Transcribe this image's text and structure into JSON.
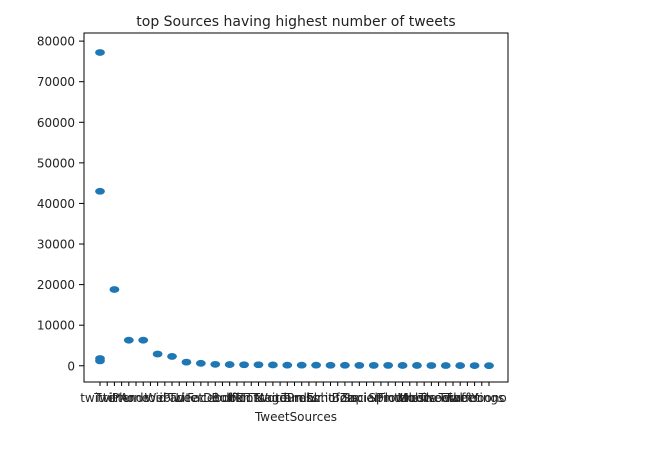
{
  "chart_data": {
    "type": "scatter",
    "title": "top Sources having highest number of tweets",
    "xlabel": "TweetSources",
    "ylabel": "",
    "ylim": [
      -4000,
      82000
    ],
    "yticks": [
      0,
      10000,
      20000,
      30000,
      40000,
      50000,
      60000,
      70000,
      80000
    ],
    "grid": false,
    "categories": [
      "twitter",
      "Twitter",
      "iPhone",
      "Android",
      "Web",
      "iPad",
      "Lite",
      "TweetDeck",
      "Facebook",
      "Buffer",
      "IFTTT",
      "Hootsuite",
      "Instagram",
      "WordPress",
      "Tumblr",
      "dlvr.it",
      "Echofon",
      "Bots",
      "Zapier",
      "SocialFlow",
      "Sprout",
      "Pinterest",
      "Mobile",
      "Ubersocial",
      "Tweetbot",
      "Twuffer",
      "Tweetings",
      "Yoono"
    ],
    "tick_labels": [
      "twitter",
      "",
      "Twitter",
      "",
      "iPhone",
      "",
      "Android",
      "",
      "Web",
      "",
      "iPad",
      "",
      "Lite",
      "",
      "TweetDeck",
      "",
      "Facebook",
      "",
      "Buffer",
      "",
      "IFTTT",
      "",
      "Hootsuite",
      "",
      "Instagram",
      "",
      "WordPress",
      "",
      "Tumblr",
      "",
      "dlvr.it",
      "",
      "Echofon",
      "",
      "Bots",
      "",
      "Zapier",
      "",
      "SocialFlow",
      "",
      "Sprout",
      "",
      "Pinterest",
      "",
      "Mobile",
      "",
      "Ubersocial",
      "",
      "Tweetbot",
      "",
      "Twuffer",
      "",
      "Tweetings",
      "",
      "Yoono"
    ],
    "series": [
      {
        "points": [
          [
            0,
            77200
          ],
          [
            0,
            43000
          ],
          [
            0,
            1800
          ],
          [
            0,
            1200
          ],
          [
            1,
            18800
          ],
          [
            2,
            6300
          ],
          [
            3,
            6300
          ],
          [
            4,
            2900
          ],
          [
            5,
            2300
          ],
          [
            6,
            900
          ],
          [
            7,
            600
          ],
          [
            8,
            350
          ],
          [
            9,
            300
          ],
          [
            10,
            250
          ],
          [
            11,
            250
          ],
          [
            12,
            200
          ],
          [
            13,
            150
          ],
          [
            14,
            150
          ],
          [
            15,
            150
          ],
          [
            16,
            120
          ],
          [
            17,
            120
          ],
          [
            18,
            100
          ],
          [
            19,
            100
          ],
          [
            20,
            100
          ],
          [
            21,
            80
          ],
          [
            22,
            80
          ],
          [
            23,
            70
          ],
          [
            24,
            60
          ],
          [
            25,
            50
          ],
          [
            26,
            40
          ],
          [
            27,
            30
          ]
        ]
      }
    ],
    "colors": {
      "marker": "#1f77b4",
      "axes": "#000000",
      "text": "#222222"
    }
  }
}
